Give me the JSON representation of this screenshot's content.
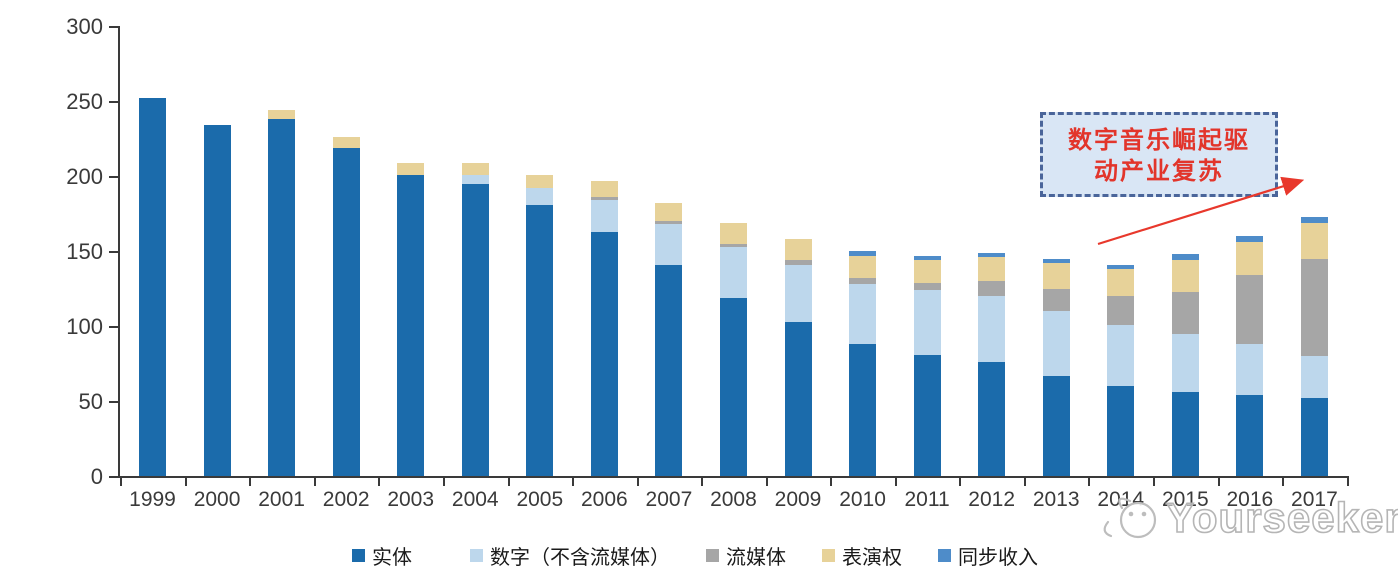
{
  "watermark": {
    "text": "Yourseeker"
  },
  "annotation": {
    "line1": "数字音乐崛起驱",
    "line2": "动产业复苏",
    "full_text": "数字音乐崛起驱动产业复苏"
  },
  "colors": {
    "axis": "#3a3a3a",
    "annotation_text": "#e2352b",
    "annotation_border": "#4a659a",
    "annotation_fill": "#d9e6f5",
    "arrow": "#e8382c",
    "watermark": "#b5b5b5"
  },
  "chart_data": {
    "type": "bar",
    "stacked": true,
    "title": "",
    "xlabel": "",
    "ylabel": "",
    "grid": false,
    "legend_position": "bottom",
    "ylim": [
      0,
      300
    ],
    "yticks": [
      0,
      50,
      100,
      150,
      200,
      250,
      300
    ],
    "categories": [
      "1999",
      "2000",
      "2001",
      "2002",
      "2003",
      "2004",
      "2005",
      "2006",
      "2007",
      "2008",
      "2009",
      "2010",
      "2011",
      "2012",
      "2013",
      "2014",
      "2015",
      "2016",
      "2017"
    ],
    "series": [
      {
        "name": "实体",
        "color": "#1B6BAB",
        "values": [
          252,
          234,
          238,
          219,
          201,
          195,
          181,
          163,
          141,
          119,
          103,
          88,
          81,
          76,
          67,
          60,
          56,
          54,
          52
        ]
      },
      {
        "name": "数字（不含流媒体）",
        "color": "#BDD7EC",
        "values": [
          0,
          0,
          0,
          0,
          0,
          6,
          11,
          21,
          27,
          34,
          38,
          40,
          43,
          44,
          43,
          41,
          39,
          34,
          28
        ]
      },
      {
        "name": "流媒体",
        "color": "#A6A6A6",
        "values": [
          0,
          0,
          0,
          0,
          0,
          0,
          0,
          2,
          2,
          2,
          3,
          4,
          5,
          10,
          15,
          19,
          28,
          46,
          65
        ]
      },
      {
        "name": "表演权",
        "color": "#E7D299",
        "values": [
          0,
          0,
          6,
          7,
          8,
          8,
          9,
          11,
          12,
          14,
          14,
          15,
          15,
          16,
          17,
          18,
          21,
          22,
          24
        ]
      },
      {
        "name": "同步收入",
        "color": "#4E8CC9",
        "values": [
          0,
          0,
          0,
          0,
          0,
          0,
          0,
          0,
          0,
          0,
          0,
          3,
          3,
          3,
          3,
          3,
          4,
          4,
          4
        ]
      }
    ],
    "annotation_text": "数字音乐崛起驱动产业复苏"
  }
}
